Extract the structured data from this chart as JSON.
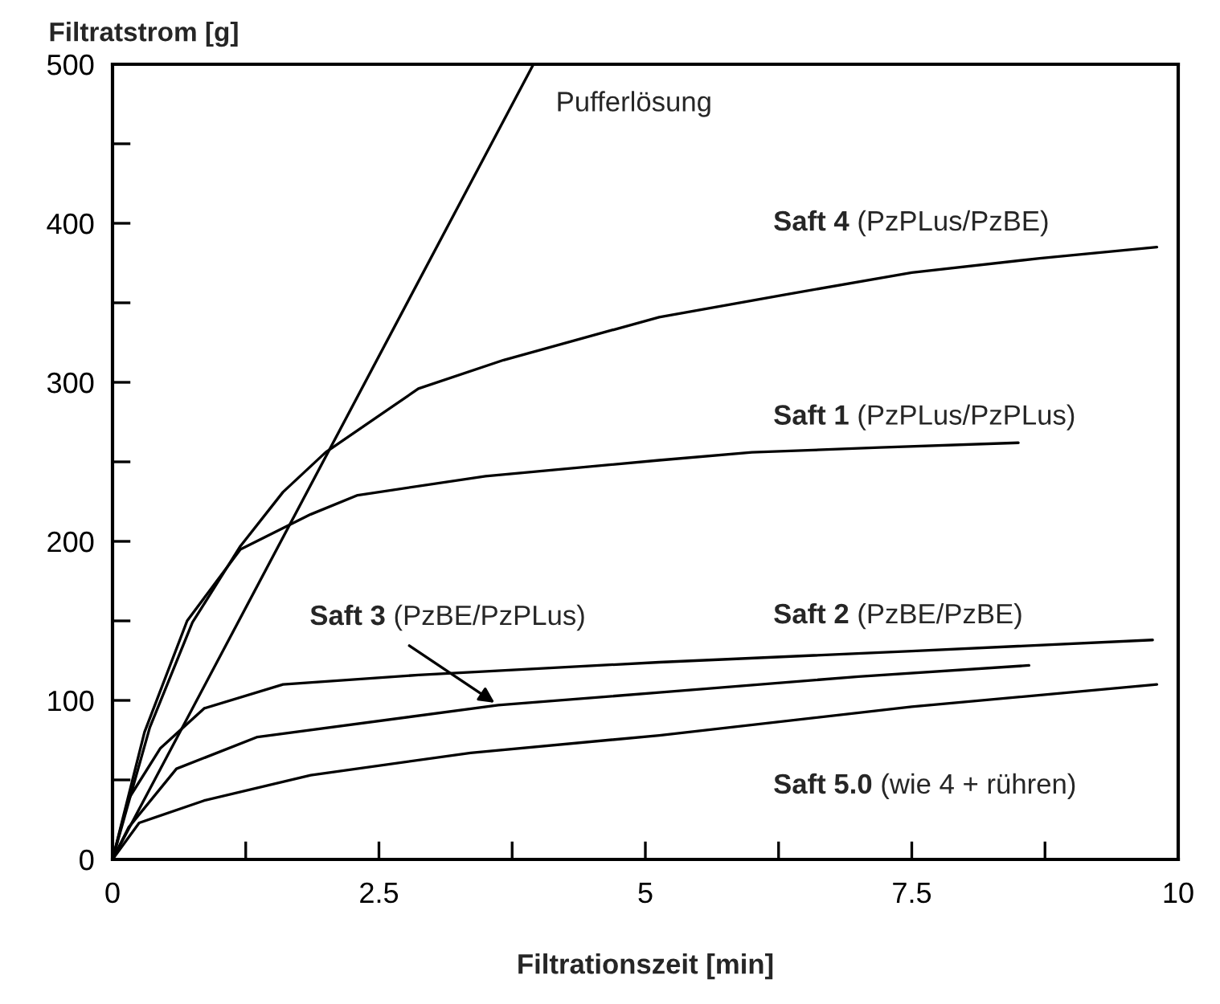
{
  "chart_data": {
    "type": "line",
    "xlabel": "Filtrationszeit [min]",
    "ylabel": "Filtratstrom [g]",
    "xlim": [
      0,
      10
    ],
    "ylim": [
      0,
      500
    ],
    "xticks": [
      0,
      {
        "value": 1.25,
        "label": null
      },
      2.5,
      {
        "value": 3.75,
        "label": null
      },
      5,
      {
        "value": 6.25,
        "label": null
      },
      7.5,
      {
        "value": 8.75,
        "label": null
      },
      10
    ],
    "yticks": [
      0,
      {
        "value": 50,
        "label": null
      },
      100,
      {
        "value": 150,
        "label": null
      },
      200,
      {
        "value": 250,
        "label": null
      },
      300,
      {
        "value": 350,
        "label": null
      },
      400,
      {
        "value": 450,
        "label": null
      },
      500
    ],
    "grid": false,
    "legend": false,
    "marker": "none",
    "line_style": "solid",
    "series": [
      {
        "name": "Pufferlösung",
        "color": "#000000",
        "x": [
          0,
          3.95
        ],
        "values": [
          0,
          500
        ]
      },
      {
        "name": "Saft 4 (PzPLus/PzBE)",
        "color": "#000000",
        "x": [
          0,
          0.35,
          0.75,
          1.2,
          1.6,
          2.0,
          2.87,
          3.67,
          5.13,
          6.3,
          7.5,
          8.7,
          9.8
        ],
        "values": [
          0,
          83,
          149,
          197,
          231,
          256,
          296,
          314,
          341,
          355,
          369,
          378,
          385
        ]
      },
      {
        "name": "Saft 1 (PzPLus/PzPLus)",
        "color": "#000000",
        "x": [
          0,
          0.3,
          0.7,
          1.2,
          1.86,
          2.3,
          3.5,
          5.13,
          6.0,
          7.2,
          8.5
        ],
        "values": [
          0,
          80,
          150,
          195,
          217,
          229,
          241,
          251,
          256,
          259,
          262
        ]
      },
      {
        "name": "Saft 2 (PzBE/PzBE)",
        "color": "#000000",
        "x": [
          0,
          0.15,
          0.45,
          0.86,
          1.6,
          2.87,
          5.13,
          7.5,
          9.76
        ],
        "values": [
          0,
          38,
          70,
          95,
          110,
          116,
          124,
          131,
          138
        ]
      },
      {
        "name": "Saft 3 (PzBE/PzPLus)",
        "color": "#000000",
        "x": [
          0,
          0.15,
          0.6,
          1.36,
          3.62,
          5.13,
          7.0,
          8.6
        ],
        "values": [
          0,
          20,
          57,
          77,
          97,
          105,
          115,
          122
        ]
      },
      {
        "name": "Saft 5.0 (wie 4 + rühren)",
        "color": "#000000",
        "x": [
          0,
          0.25,
          0.86,
          1.86,
          3.36,
          5.13,
          7.5,
          9.8
        ],
        "values": [
          0,
          23,
          37,
          53,
          67,
          78,
          96,
          110
        ]
      }
    ]
  }
}
